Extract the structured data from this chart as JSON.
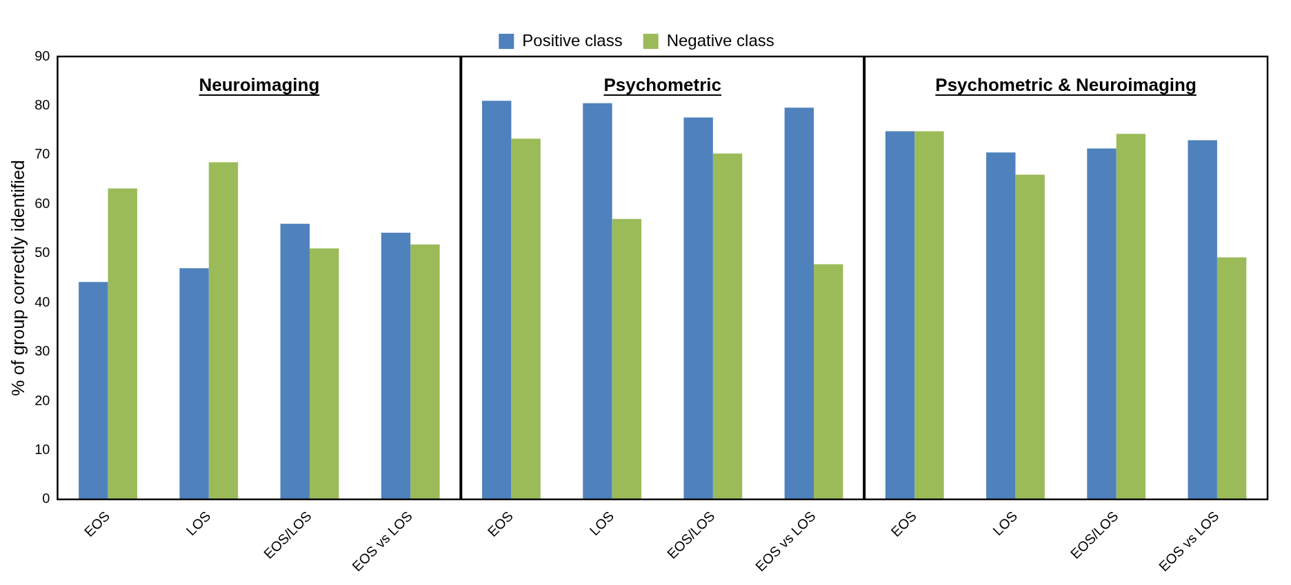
{
  "chart_data": {
    "type": "bar",
    "ylabel": "% of group correctly identified",
    "categories": [
      "EOS",
      "LOS",
      "EOS/LOS",
      "EOS vs LOS",
      "EOS",
      "LOS",
      "EOS/LOS",
      "EOS vs LOS",
      "EOS",
      "LOS",
      "EOS/LOS",
      "EOS vs LOS"
    ],
    "series": [
      {
        "name": "Positive class",
        "color": "#4f81bd",
        "values": [
          44.2,
          47,
          56,
          54.2,
          81,
          80.5,
          77.6,
          79.6,
          74.8,
          70.5,
          71.3,
          73
        ]
      },
      {
        "name": "Negative class",
        "color": "#9bbb59",
        "values": [
          63.2,
          68.5,
          51,
          51.8,
          73.3,
          57,
          70.3,
          47.8,
          74.8,
          66,
          74.3,
          49.2
        ]
      }
    ],
    "ylim": [
      0,
      90
    ],
    "yticks": [
      0,
      10,
      20,
      30,
      40,
      50,
      60,
      70,
      80,
      90
    ],
    "grid": false,
    "legend": "top",
    "annotations": [
      "Neuroimaging",
      "Psychometric",
      "Psychometric & Neuroimaging"
    ]
  }
}
